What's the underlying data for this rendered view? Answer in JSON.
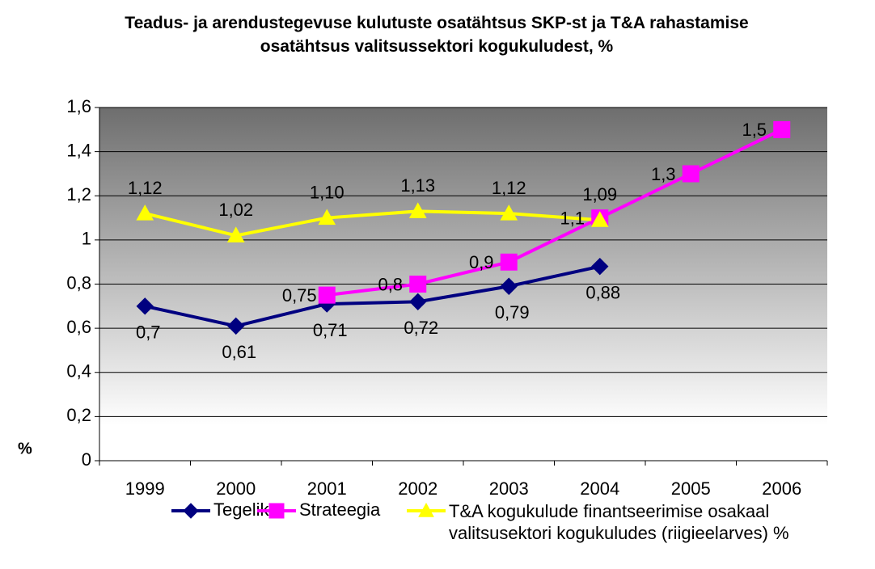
{
  "chart_data": {
    "type": "line",
    "title": "Teadus- ja arendustegevuse kulutuste osatähtsus SKP-st ja T&A rahastamise osatähtsus valitsussektori kogukuludest, %",
    "y_label": "%",
    "categories": [
      "1999",
      "2000",
      "2001",
      "2002",
      "2003",
      "2004",
      "2005",
      "2006"
    ],
    "series": [
      {
        "name": "Tegelik",
        "color": "#000080",
        "marker": "diamond",
        "values": [
          0.7,
          0.61,
          0.71,
          0.72,
          0.79,
          0.88,
          null,
          null
        ],
        "value_labels": [
          "0,7",
          "0,61",
          "0,71",
          "0,72",
          "0,79",
          "0,88",
          null,
          null
        ]
      },
      {
        "name": "Strateegia",
        "color": "#ff00ff",
        "marker": "square",
        "values": [
          null,
          null,
          0.75,
          0.8,
          0.9,
          1.1,
          1.3,
          1.5
        ],
        "value_labels": [
          null,
          null,
          "0,75",
          "0,8",
          "0,9",
          "1,1",
          "1,3",
          "1,5"
        ]
      },
      {
        "name": "T&A kogukulude finantseerimise osakaal valitsusektori kogukuludes (riigieelarves) %",
        "color": "#ffff00",
        "marker": "triangle",
        "values": [
          1.12,
          1.02,
          1.1,
          1.13,
          1.12,
          1.09,
          null,
          null
        ],
        "value_labels": [
          "1,12",
          "1,02",
          "1,10",
          "1,13",
          "1,12",
          "1,09",
          null,
          null
        ]
      }
    ],
    "ylim": [
      0,
      1.6
    ],
    "yticks": [
      0,
      {
        "value": 0.2,
        "label": "0,2"
      },
      {
        "value": 0.4,
        "label": "0,4"
      },
      {
        "value": 0.6,
        "label": "0,6"
      },
      {
        "value": 0.8,
        "label": "0,8"
      },
      1,
      {
        "value": 1.2,
        "label": "1,2"
      },
      {
        "value": 1.4,
        "label": "1,4"
      },
      {
        "value": 1.6,
        "label": "1,6"
      }
    ],
    "grid": true
  }
}
